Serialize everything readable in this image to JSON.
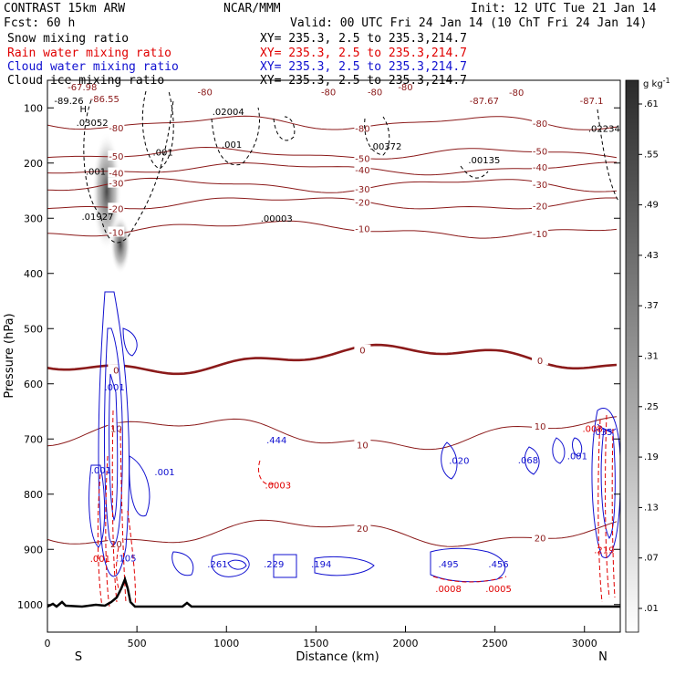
{
  "header": {
    "model": "CONTRAST 15km ARW",
    "org": "NCAR/MMM",
    "init": "Init: 12 UTC Tue 21 Jan 14",
    "fcst": "Fcst:   60 h",
    "valid": "Valid: 00 UTC Fri 24 Jan 14 (10 ChT Fri 24 Jan 14)",
    "lines": [
      {
        "label": "Snow mixing ratio",
        "xy": "XY= 235.3,  2.5 to 235.3,214.7",
        "color": "#000000"
      },
      {
        "label": "Rain water mixing ratio",
        "xy": "XY= 235.3,  2.5 to 235.3,214.7",
        "color": "#e00000"
      },
      {
        "label": "Cloud water mixing ratio",
        "xy": "XY= 235.3,  2.5 to 235.3,214.7",
        "color": "#1010d0"
      },
      {
        "label": "Cloud ice mixing ratio",
        "xy": "XY= 235.3,  2.5 to 235.3,214.7",
        "color": "#000000"
      }
    ]
  },
  "chart_data": {
    "type": "contour-cross-section",
    "xlabel": "Distance (km)",
    "ylabel": "Pressure (hPa)",
    "xlim": [
      0,
      3200
    ],
    "ylim": [
      1050,
      50
    ],
    "xticks": [
      0,
      500,
      1000,
      1500,
      2000,
      2500,
      3000
    ],
    "yticks": [
      100,
      200,
      300,
      400,
      500,
      600,
      700,
      800,
      900,
      1000
    ],
    "x_end_labels": {
      "left": "S",
      "right": "N"
    },
    "colorbar": {
      "unit": "g kg",
      "unit_exp": "-1",
      "ticks": [
        ".01",
        ".07",
        ".13",
        ".19",
        ".25",
        ".31",
        ".37",
        ".43",
        ".49",
        ".55",
        ".61"
      ]
    },
    "temperature_contours": [
      {
        "label": "-80",
        "base": 127,
        "amp": 6,
        "freq": 2.3,
        "ph": 0.2
      },
      {
        "label": "-50",
        "base": 183,
        "amp": 5,
        "freq": 2.0,
        "ph": 1.1
      },
      {
        "label": "-40",
        "base": 210,
        "amp": 5,
        "freq": 1.7,
        "ph": 0.6
      },
      {
        "label": "-30",
        "base": 240,
        "amp": 6,
        "freq": 1.9,
        "ph": 2.1
      },
      {
        "label": "-20",
        "base": 273,
        "amp": 6,
        "freq": 1.5,
        "ph": 0.9
      },
      {
        "label": "-10",
        "base": 320,
        "amp": 7,
        "freq": 1.3,
        "ph": 1.7
      },
      {
        "label": "0",
        "base": 556,
        "amp": 12,
        "freq": 1.1,
        "ph": 0.4
      },
      {
        "label": "10",
        "base": 690,
        "amp": 14,
        "freq": 1.4,
        "ph": 2.5
      },
      {
        "label": "20",
        "base": 870,
        "amp": 12,
        "freq": 1.6,
        "ph": 0.3
      }
    ],
    "plot_labels": [
      {
        "x": 195,
        "p": 68,
        "text": "-67.98",
        "color": "#8b1a1a"
      },
      {
        "x": 120,
        "p": 93,
        "text": "-89.26",
        "color": "#000000"
      },
      {
        "x": 320,
        "p": 90,
        "text": "-86.55",
        "color": "#8b1a1a"
      },
      {
        "x": 880,
        "p": 77,
        "text": "-80",
        "color": "#8b1a1a"
      },
      {
        "x": 2000,
        "p": 68,
        "text": "-80",
        "color": "#8b1a1a"
      },
      {
        "x": 2440,
        "p": 93,
        "text": "-87.67",
        "color": "#8b1a1a"
      },
      {
        "x": 3040,
        "p": 93,
        "text": "-87.1",
        "color": "#8b1a1a"
      },
      {
        "x": 1570,
        "p": 77,
        "text": "-80",
        "color": "#8b1a1a"
      },
      {
        "x": 1830,
        "p": 77,
        "text": "-80",
        "color": "#8b1a1a"
      },
      {
        "x": 2620,
        "p": 78,
        "text": "-80",
        "color": "#8b1a1a"
      },
      {
        "x": 200,
        "p": 108,
        "text": "H",
        "color": "#000000"
      },
      {
        "x": 250,
        "p": 133,
        "text": ".03052",
        "color": "#000000"
      },
      {
        "x": 1010,
        "p": 113,
        "text": ".02004",
        "color": "#000000"
      },
      {
        "x": 1890,
        "p": 176,
        "text": ".00372",
        "color": "#000000"
      },
      {
        "x": 2440,
        "p": 200,
        "text": ".00135",
        "color": "#000000"
      },
      {
        "x": 3110,
        "p": 143,
        "text": ".02234",
        "color": "#000000"
      },
      {
        "x": 280,
        "p": 303,
        "text": ".01927",
        "color": "#000000"
      },
      {
        "x": 1280,
        "p": 306,
        "text": ".00003",
        "color": "#000000"
      },
      {
        "x": 645,
        "p": 186,
        "text": ".001",
        "color": "#000000"
      },
      {
        "x": 1030,
        "p": 172,
        "text": ".001",
        "color": "#000000"
      },
      {
        "x": 270,
        "p": 221,
        "text": ".001",
        "color": "#000000"
      },
      {
        "x": 375,
        "p": 612,
        "text": ".001",
        "color": "#1010d0"
      },
      {
        "x": 300,
        "p": 762,
        "text": ".001",
        "color": "#1010d0"
      },
      {
        "x": 655,
        "p": 766,
        "text": ".001",
        "color": "#1010d0"
      },
      {
        "x": 1280,
        "p": 708,
        "text": ".444",
        "color": "#1010d0"
      },
      {
        "x": 1288,
        "p": 790,
        "text": ".0003",
        "color": "#e00000"
      },
      {
        "x": 2300,
        "p": 745,
        "text": ".020",
        "color": "#1010d0"
      },
      {
        "x": 2685,
        "p": 744,
        "text": ".068",
        "color": "#1010d0"
      },
      {
        "x": 2960,
        "p": 737,
        "text": ".001",
        "color": "#1010d0"
      },
      {
        "x": 3100,
        "p": 693,
        "text": ".035",
        "color": "#1010d0"
      },
      {
        "x": 3045,
        "p": 687,
        "text": ".008",
        "color": "#e00000"
      },
      {
        "x": 3110,
        "p": 907,
        "text": ".219",
        "color": "#e00000"
      },
      {
        "x": 295,
        "p": 923,
        "text": ".001",
        "color": "#e00000"
      },
      {
        "x": 440,
        "p": 922,
        "text": ".105",
        "color": "#1010d0"
      },
      {
        "x": 950,
        "p": 933,
        "text": ".261",
        "color": "#1010d0"
      },
      {
        "x": 1265,
        "p": 933,
        "text": ".229",
        "color": "#1010d0"
      },
      {
        "x": 1530,
        "p": 933,
        "text": ".194",
        "color": "#1010d0"
      },
      {
        "x": 2240,
        "p": 933,
        "text": ".495",
        "color": "#1010d0"
      },
      {
        "x": 2520,
        "p": 933,
        "text": ".456",
        "color": "#1010d0"
      },
      {
        "x": 2240,
        "p": 977,
        "text": ".0008",
        "color": "#e00000"
      },
      {
        "x": 2520,
        "p": 977,
        "text": ".0005",
        "color": "#e00000"
      }
    ]
  }
}
